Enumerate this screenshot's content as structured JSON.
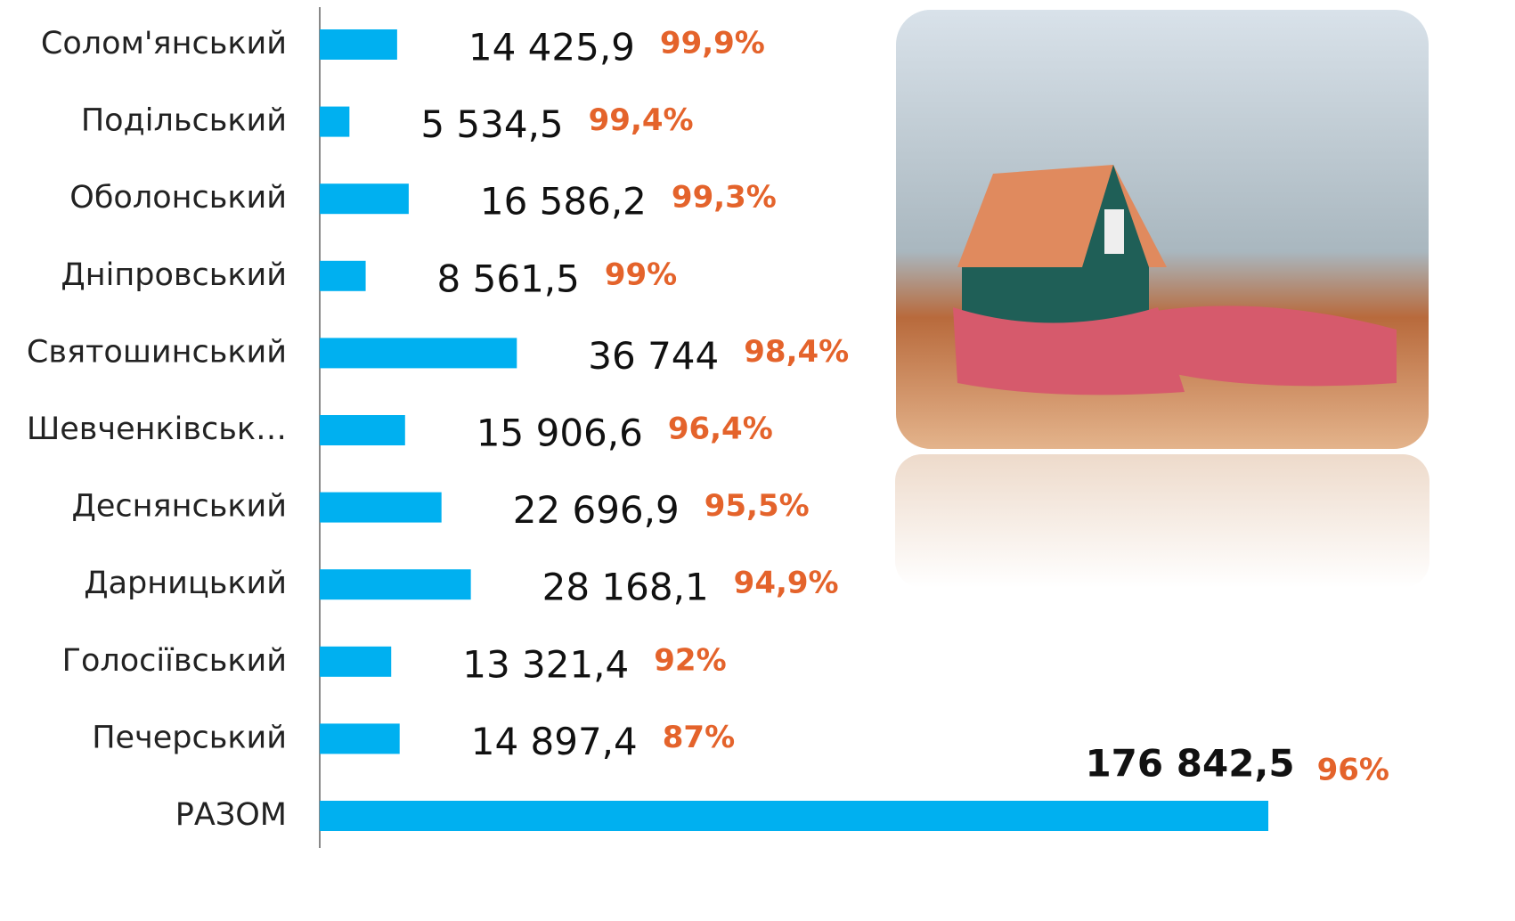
{
  "chart_data": {
    "type": "bar",
    "orientation": "horizontal",
    "color": "#00b0f0",
    "categories": [
      "Солом'янський",
      "Подільський",
      "Оболонський",
      "Дніпровський",
      "Святошинський",
      "Шевченківськ…",
      "Деснянський",
      "Дарницький",
      "Голосіївський",
      "Печерський",
      "РАЗОМ"
    ],
    "values": [
      14425.9,
      5534.5,
      16586.2,
      8561.5,
      36744,
      15906.6,
      22696.9,
      28168.1,
      13321.4,
      14897.4,
      176842.5
    ],
    "value_labels": [
      "14 425,9",
      "5 534,5",
      "16 586,2",
      "8 561,5",
      "36 744",
      "15 906,6",
      "22 696,9",
      "28 168,1",
      "13 321,4",
      "14 897,4",
      "176 842,5"
    ],
    "percent": {
      "color": "#e4632b",
      "values": [
        99.9,
        99.4,
        99.3,
        99,
        98.4,
        96.4,
        95.5,
        94.9,
        92,
        87,
        96
      ],
      "value_labels": [
        "99,9%",
        "99,4%",
        "99,3%",
        "99%",
        "98,4%",
        "96,4%",
        "95,5%",
        "94,9%",
        "92%",
        "87%",
        "96%"
      ]
    },
    "xlim": [
      0,
      200000
    ]
  }
}
